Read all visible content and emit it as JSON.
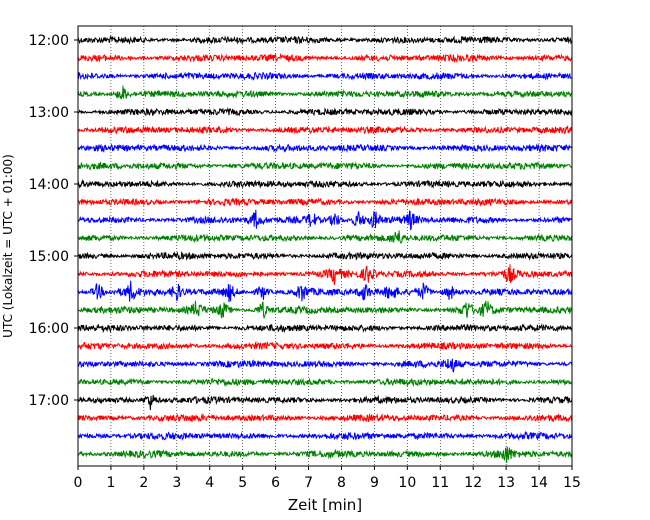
{
  "chart_data": {
    "type": "line",
    "title": "",
    "xlabel": "Zeit  [min]",
    "ylabel": "UTC (Lokalzeit = UTC + 01:00)",
    "xlim": [
      0,
      15
    ],
    "x_ticks": [
      0,
      1,
      2,
      3,
      4,
      5,
      6,
      7,
      8,
      9,
      10,
      11,
      12,
      13,
      14,
      15
    ],
    "y_ticks": [
      "12:00",
      "13:00",
      "14:00",
      "15:00",
      "16:00",
      "17:00"
    ],
    "grid": "vertical dotted",
    "trace_colors": [
      "#000000",
      "#ff0000",
      "#0000ff",
      "#008000"
    ],
    "traces": [
      {
        "time": "12:00",
        "color": "#000000",
        "events": []
      },
      {
        "time": "12:15",
        "color": "#ff0000",
        "events": []
      },
      {
        "time": "12:30",
        "color": "#0000ff",
        "events": []
      },
      {
        "time": "12:45",
        "color": "#008000",
        "events": [
          1.35
        ]
      },
      {
        "time": "13:00",
        "color": "#000000",
        "events": []
      },
      {
        "time": "13:15",
        "color": "#ff0000",
        "events": []
      },
      {
        "time": "13:30",
        "color": "#0000ff",
        "events": []
      },
      {
        "time": "13:45",
        "color": "#008000",
        "events": []
      },
      {
        "time": "14:00",
        "color": "#000000",
        "events": []
      },
      {
        "time": "14:15",
        "color": "#ff0000",
        "events": []
      },
      {
        "time": "14:30",
        "color": "#0000ff",
        "events": [
          5.4,
          7.1,
          7.8,
          8.5,
          9.0,
          10.1
        ]
      },
      {
        "time": "14:45",
        "color": "#008000",
        "events": [
          9.7
        ]
      },
      {
        "time": "15:00",
        "color": "#000000",
        "events": []
      },
      {
        "time": "15:15",
        "color": "#ff0000",
        "events": [
          7.8,
          8.8,
          13.1
        ]
      },
      {
        "time": "15:30",
        "color": "#0000ff",
        "events": [
          0.6,
          1.6,
          3.0,
          4.6,
          5.6,
          6.8,
          8.7,
          9.5,
          10.5,
          11.3
        ]
      },
      {
        "time": "15:45",
        "color": "#008000",
        "events": [
          3.6,
          4.4,
          5.6,
          11.8,
          12.4
        ]
      },
      {
        "time": "16:00",
        "color": "#000000",
        "events": []
      },
      {
        "time": "16:15",
        "color": "#ff0000",
        "events": []
      },
      {
        "time": "16:30",
        "color": "#0000ff",
        "events": [
          11.35
        ]
      },
      {
        "time": "16:45",
        "color": "#008000",
        "events": []
      },
      {
        "time": "17:00",
        "color": "#000000",
        "events": [
          2.2
        ]
      },
      {
        "time": "17:15",
        "color": "#ff0000",
        "events": []
      },
      {
        "time": "17:30",
        "color": "#0000ff",
        "events": []
      },
      {
        "time": "17:45",
        "color": "#008000",
        "events": [
          13.0
        ]
      }
    ]
  }
}
